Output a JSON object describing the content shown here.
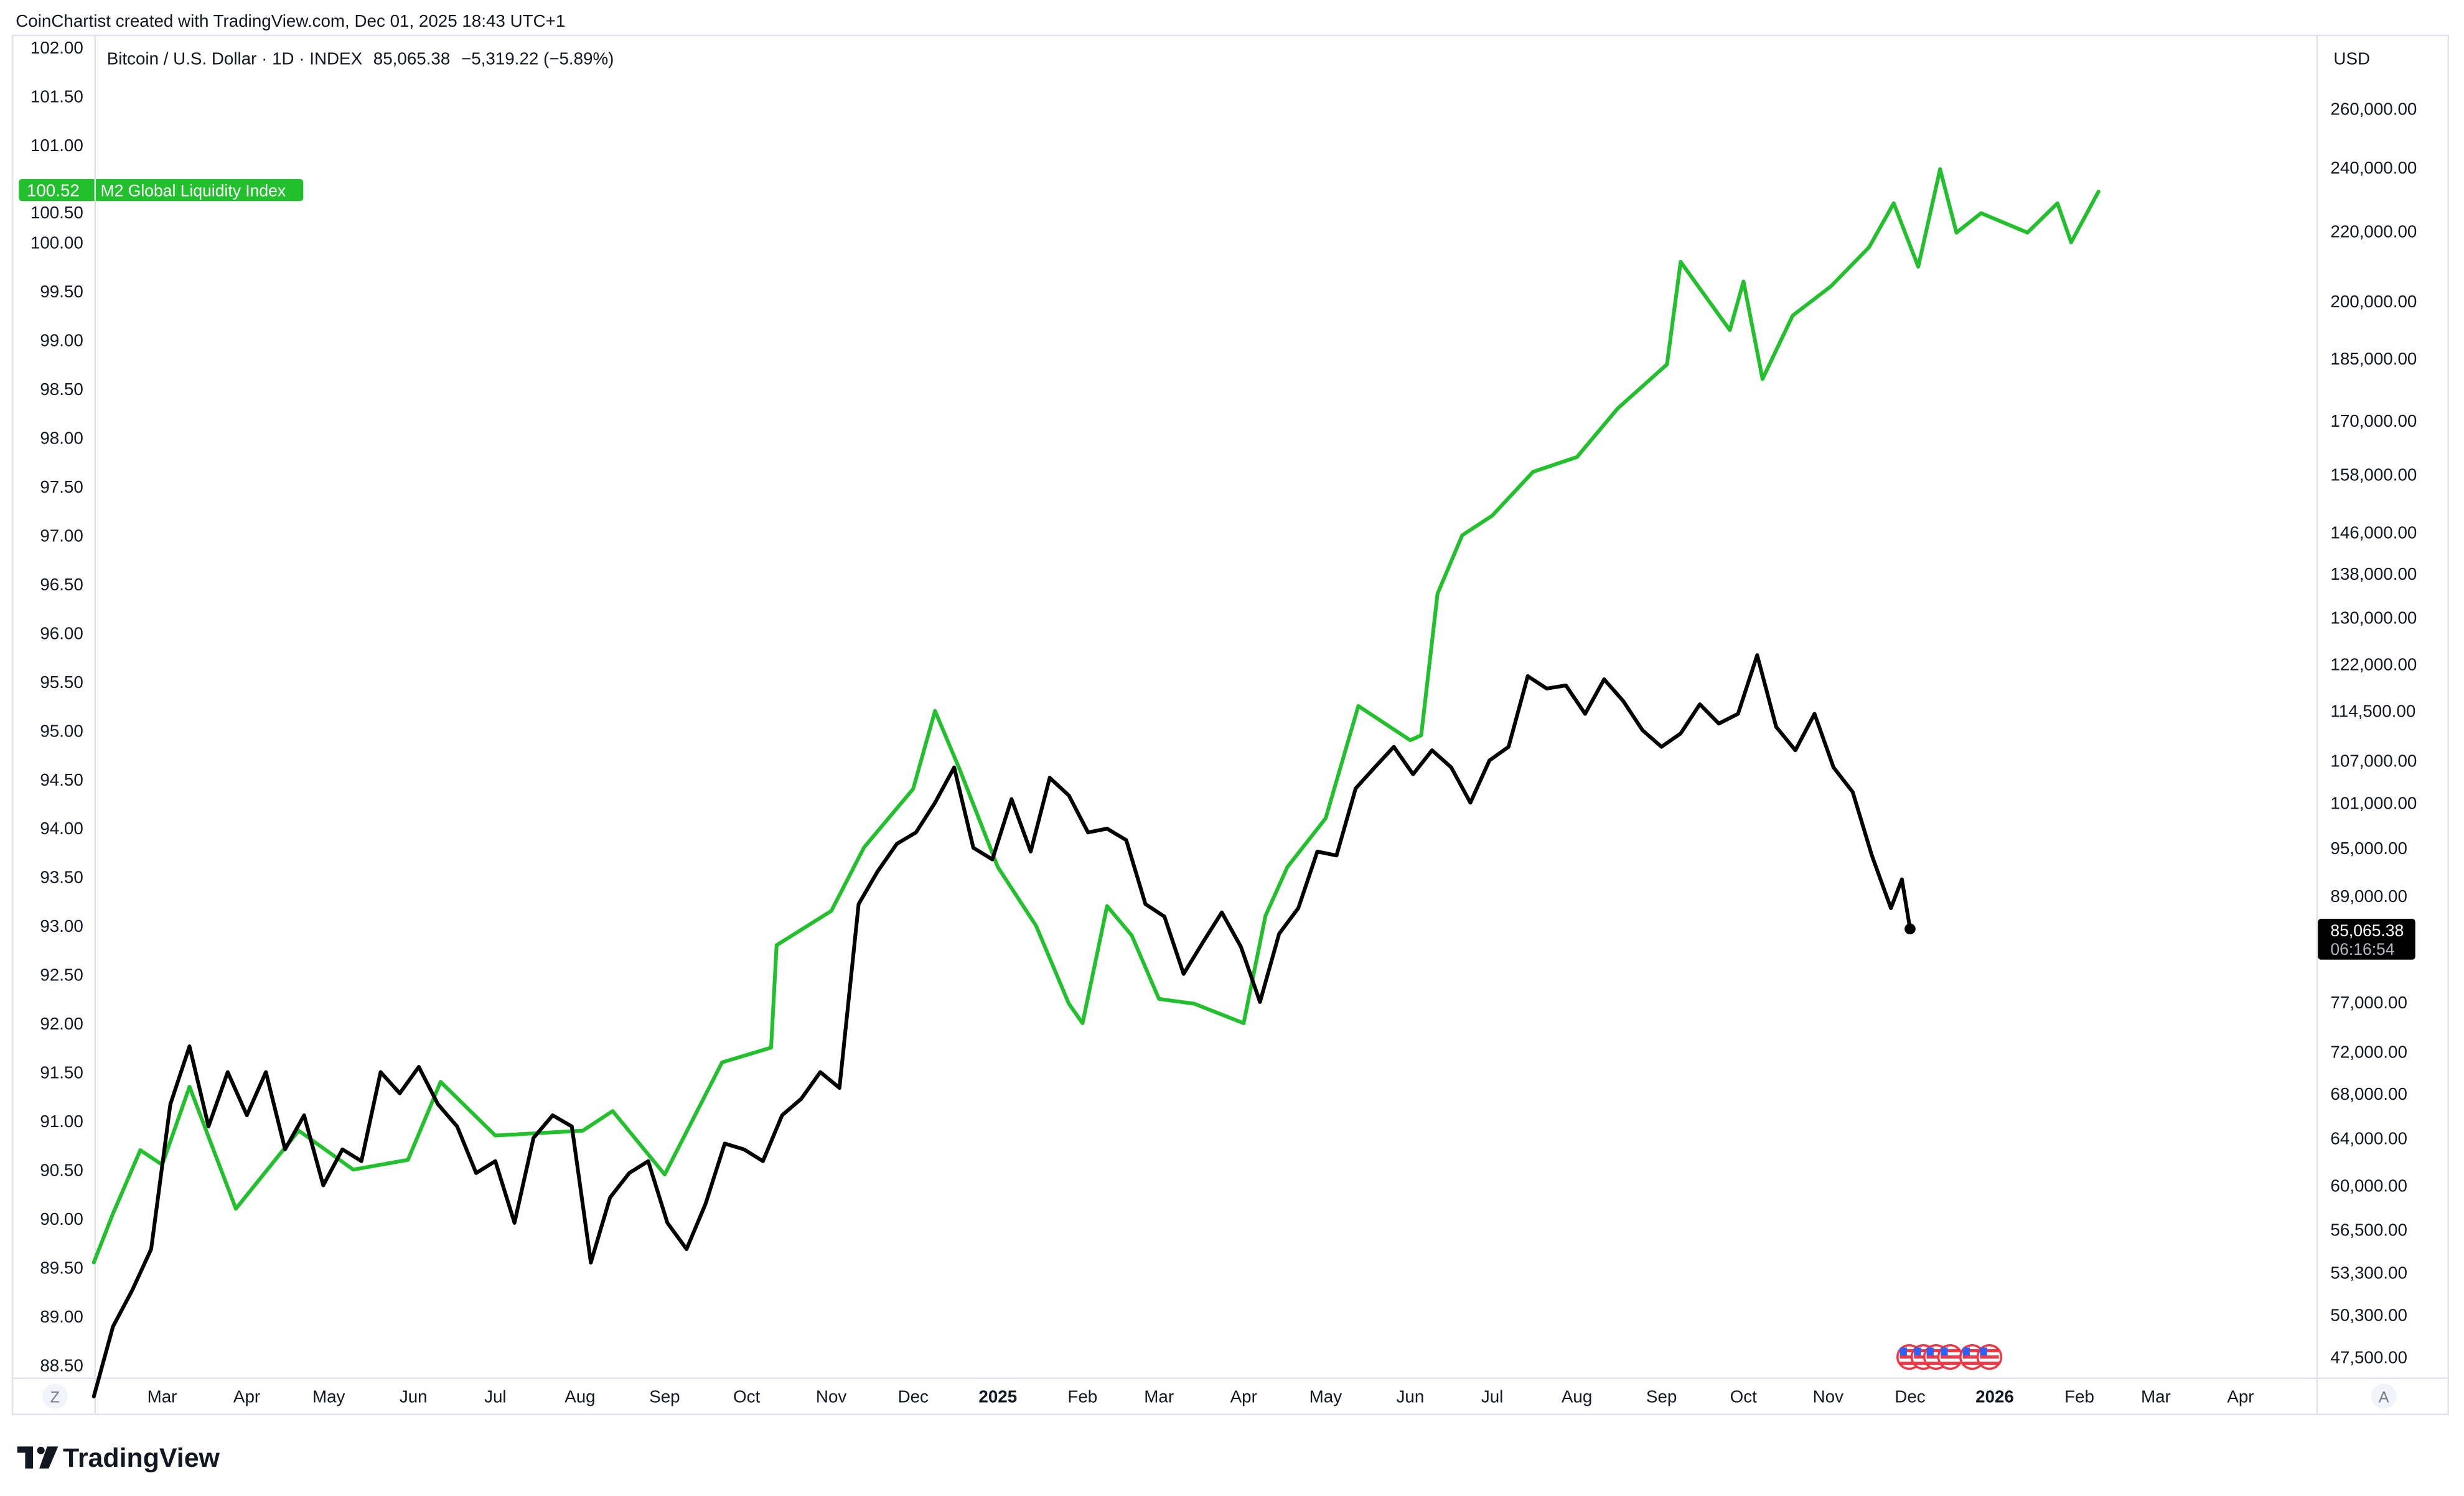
{
  "header": {
    "attribution": "CoinChartist created with TradingView.com, Dec 01, 2025 18:43 UTC+1"
  },
  "legend": {
    "symbol": "Bitcoin / U.S. Dollar · 1D · INDEX",
    "last": "85,065.38",
    "change": "−5,319.22 (−5.89%)"
  },
  "left_scale": {
    "badge_value": "100.52",
    "badge_label": "M2 Global Liquidity Index",
    "scale_button": "Z"
  },
  "right_scale": {
    "unit": "USD",
    "price_badge": "85,065.38",
    "countdown": "06:16:54",
    "scale_button": "A"
  },
  "logo": {
    "text": "TradingView"
  },
  "colors": {
    "btc": "#000000",
    "m2": "#22c02c",
    "grid_border": "#e0e3eb",
    "flag_red": "#f23645",
    "flag_blue": "#2962ff"
  },
  "chart_data": {
    "type": "line",
    "title": "",
    "left_axis": {
      "ylim": [
        88.5,
        102.0
      ],
      "ticks": [
        "102.00",
        "101.50",
        "101.00",
        "100.50",
        "100.00",
        "99.50",
        "99.00",
        "98.50",
        "98.00",
        "97.50",
        "97.00",
        "96.50",
        "96.00",
        "95.50",
        "95.00",
        "94.50",
        "94.00",
        "93.50",
        "93.00",
        "92.50",
        "92.00",
        "91.50",
        "91.00",
        "90.50",
        "90.00",
        "89.50",
        "89.00",
        "88.50"
      ]
    },
    "right_axis": {
      "scale": "log",
      "unit": "USD",
      "ticks": [
        "260,000.00",
        "240,000.00",
        "220,000.00",
        "200,000.00",
        "185,000.00",
        "170,000.00",
        "158,000.00",
        "146,000.00",
        "138,000.00",
        "130,000.00",
        "122,000.00",
        "114,500.00",
        "107,000.00",
        "101,000.00",
        "95,000.00",
        "89,000.00",
        "77,000.00",
        "72,000.00",
        "68,000.00",
        "64,000.00",
        "60,000.00",
        "56,500.00",
        "53,300.00",
        "50,300.00",
        "47,500.00"
      ]
    },
    "x_axis": {
      "ticks": [
        {
          "label": "Mar",
          "date": "2024-03-01"
        },
        {
          "label": "Apr",
          "date": "2024-04-01"
        },
        {
          "label": "May",
          "date": "2024-05-01"
        },
        {
          "label": "Jun",
          "date": "2024-06-01"
        },
        {
          "label": "Jul",
          "date": "2024-07-01"
        },
        {
          "label": "Aug",
          "date": "2024-08-01"
        },
        {
          "label": "Sep",
          "date": "2024-09-01"
        },
        {
          "label": "Oct",
          "date": "2024-10-01"
        },
        {
          "label": "Nov",
          "date": "2024-11-01"
        },
        {
          "label": "Dec",
          "date": "2024-12-01"
        },
        {
          "label": "2025",
          "date": "2025-01-01",
          "bold": true
        },
        {
          "label": "Feb",
          "date": "2025-02-01"
        },
        {
          "label": "Mar",
          "date": "2025-03-01"
        },
        {
          "label": "Apr",
          "date": "2025-04-01"
        },
        {
          "label": "May",
          "date": "2025-05-01"
        },
        {
          "label": "Jun",
          "date": "2025-06-01"
        },
        {
          "label": "Jul",
          "date": "2025-07-01"
        },
        {
          "label": "Aug",
          "date": "2025-08-01"
        },
        {
          "label": "Sep",
          "date": "2025-09-01"
        },
        {
          "label": "Oct",
          "date": "2025-10-01"
        },
        {
          "label": "Nov",
          "date": "2025-11-01"
        },
        {
          "label": "Dec",
          "date": "2025-12-01"
        },
        {
          "label": "2026",
          "date": "2026-01-01",
          "bold": true
        },
        {
          "label": "Feb",
          "date": "2026-02-01"
        },
        {
          "label": "Mar",
          "date": "2026-03-01"
        },
        {
          "label": "Apr",
          "date": "2026-04-01"
        }
      ]
    },
    "series": [
      {
        "name": "Bitcoin / U.S. Dollar",
        "axis": "right",
        "color": "#000000",
        "points": [
          [
            "2024-02-05",
            45000
          ],
          [
            "2024-02-12",
            49500
          ],
          [
            "2024-02-19",
            52000
          ],
          [
            "2024-02-26",
            55000
          ],
          [
            "2024-03-04",
            67000
          ],
          [
            "2024-03-11",
            72500
          ],
          [
            "2024-03-18",
            65000
          ],
          [
            "2024-03-25",
            70000
          ],
          [
            "2024-04-01",
            66000
          ],
          [
            "2024-04-08",
            70000
          ],
          [
            "2024-04-15",
            63000
          ],
          [
            "2024-04-22",
            66000
          ],
          [
            "2024-04-29",
            60000
          ],
          [
            "2024-05-06",
            63000
          ],
          [
            "2024-05-13",
            62000
          ],
          [
            "2024-05-20",
            70000
          ],
          [
            "2024-05-27",
            68000
          ],
          [
            "2024-06-03",
            70500
          ],
          [
            "2024-06-10",
            67000
          ],
          [
            "2024-06-17",
            65000
          ],
          [
            "2024-06-24",
            61000
          ],
          [
            "2024-07-01",
            62000
          ],
          [
            "2024-07-08",
            57000
          ],
          [
            "2024-07-15",
            64000
          ],
          [
            "2024-07-22",
            66000
          ],
          [
            "2024-07-29",
            65000
          ],
          [
            "2024-08-05",
            54000
          ],
          [
            "2024-08-12",
            59000
          ],
          [
            "2024-08-19",
            61000
          ],
          [
            "2024-08-26",
            62000
          ],
          [
            "2024-09-02",
            57000
          ],
          [
            "2024-09-09",
            55000
          ],
          [
            "2024-09-16",
            58500
          ],
          [
            "2024-09-23",
            63500
          ],
          [
            "2024-09-30",
            63000
          ],
          [
            "2024-10-07",
            62000
          ],
          [
            "2024-10-14",
            66000
          ],
          [
            "2024-10-21",
            67500
          ],
          [
            "2024-10-28",
            70000
          ],
          [
            "2024-11-04",
            68500
          ],
          [
            "2024-11-11",
            88000
          ],
          [
            "2024-11-18",
            92000
          ],
          [
            "2024-11-25",
            95500
          ],
          [
            "2024-12-02",
            97000
          ],
          [
            "2024-12-09",
            101000
          ],
          [
            "2024-12-16",
            106000
          ],
          [
            "2024-12-23",
            95000
          ],
          [
            "2024-12-30",
            93500
          ],
          [
            "2025-01-06",
            101500
          ],
          [
            "2025-01-13",
            94500
          ],
          [
            "2025-01-20",
            104500
          ],
          [
            "2025-01-27",
            102000
          ],
          [
            "2025-02-03",
            97000
          ],
          [
            "2025-02-10",
            97500
          ],
          [
            "2025-02-17",
            96000
          ],
          [
            "2025-02-24",
            88000
          ],
          [
            "2025-03-03",
            86500
          ],
          [
            "2025-03-10",
            80000
          ],
          [
            "2025-03-17",
            83500
          ],
          [
            "2025-03-24",
            87000
          ],
          [
            "2025-03-31",
            83000
          ],
          [
            "2025-04-07",
            77000
          ],
          [
            "2025-04-14",
            84500
          ],
          [
            "2025-04-21",
            87500
          ],
          [
            "2025-04-28",
            94500
          ],
          [
            "2025-05-05",
            94000
          ],
          [
            "2025-05-12",
            103000
          ],
          [
            "2025-05-19",
            106000
          ],
          [
            "2025-05-26",
            109000
          ],
          [
            "2025-06-02",
            105000
          ],
          [
            "2025-06-09",
            108500
          ],
          [
            "2025-06-16",
            106000
          ],
          [
            "2025-06-23",
            101000
          ],
          [
            "2025-06-30",
            107000
          ],
          [
            "2025-07-07",
            109000
          ],
          [
            "2025-07-14",
            120000
          ],
          [
            "2025-07-21",
            118000
          ],
          [
            "2025-07-28",
            118500
          ],
          [
            "2025-08-04",
            114000
          ],
          [
            "2025-08-11",
            119500
          ],
          [
            "2025-08-18",
            116000
          ],
          [
            "2025-08-25",
            111500
          ],
          [
            "2025-09-01",
            109000
          ],
          [
            "2025-09-08",
            111000
          ],
          [
            "2025-09-15",
            115500
          ],
          [
            "2025-09-22",
            112500
          ],
          [
            "2025-09-29",
            114000
          ],
          [
            "2025-10-06",
            123500
          ],
          [
            "2025-10-13",
            112000
          ],
          [
            "2025-10-20",
            108500
          ],
          [
            "2025-10-27",
            114000
          ],
          [
            "2025-11-03",
            106000
          ],
          [
            "2025-11-10",
            102500
          ],
          [
            "2025-11-17",
            94000
          ],
          [
            "2025-11-24",
            87500
          ],
          [
            "2025-11-28",
            91000
          ],
          [
            "2025-12-01",
            85065.38
          ]
        ]
      },
      {
        "name": "M2 Global Liquidity Index",
        "axis": "left",
        "color": "#22c02c",
        "points": [
          [
            "2024-02-05",
            89.55
          ],
          [
            "2024-02-12",
            90.05
          ],
          [
            "2024-02-22",
            90.7
          ],
          [
            "2024-03-01",
            90.55
          ],
          [
            "2024-03-11",
            91.35
          ],
          [
            "2024-03-28",
            90.1
          ],
          [
            "2024-04-20",
            90.9
          ],
          [
            "2024-05-10",
            90.5
          ],
          [
            "2024-05-30",
            90.6
          ],
          [
            "2024-06-11",
            91.4
          ],
          [
            "2024-07-01",
            90.85
          ],
          [
            "2024-08-02",
            90.9
          ],
          [
            "2024-08-13",
            91.1
          ],
          [
            "2024-09-01",
            90.45
          ],
          [
            "2024-09-22",
            91.6
          ],
          [
            "2024-10-10",
            91.75
          ],
          [
            "2024-10-12",
            92.8
          ],
          [
            "2024-11-01",
            93.15
          ],
          [
            "2024-11-13",
            93.8
          ],
          [
            "2024-12-01",
            94.4
          ],
          [
            "2024-12-09",
            95.2
          ],
          [
            "2024-12-18",
            94.6
          ],
          [
            "2025-01-01",
            93.6
          ],
          [
            "2025-01-15",
            93.0
          ],
          [
            "2025-01-27",
            92.2
          ],
          [
            "2025-02-01",
            92.0
          ],
          [
            "2025-02-10",
            93.2
          ],
          [
            "2025-02-19",
            92.9
          ],
          [
            "2025-03-01",
            92.25
          ],
          [
            "2025-03-14",
            92.2
          ],
          [
            "2025-04-01",
            92.0
          ],
          [
            "2025-04-09",
            93.1
          ],
          [
            "2025-04-17",
            93.6
          ],
          [
            "2025-05-01",
            94.1
          ],
          [
            "2025-05-13",
            95.25
          ],
          [
            "2025-06-01",
            94.9
          ],
          [
            "2025-06-05",
            94.95
          ],
          [
            "2025-06-11",
            96.4
          ],
          [
            "2025-06-20",
            97.0
          ],
          [
            "2025-07-01",
            97.2
          ],
          [
            "2025-07-16",
            97.65
          ],
          [
            "2025-08-01",
            97.8
          ],
          [
            "2025-08-16",
            98.3
          ],
          [
            "2025-09-03",
            98.75
          ],
          [
            "2025-09-08",
            99.8
          ],
          [
            "2025-09-26",
            99.1
          ],
          [
            "2025-10-01",
            99.6
          ],
          [
            "2025-10-08",
            98.6
          ],
          [
            "2025-10-19",
            99.25
          ],
          [
            "2025-11-02",
            99.55
          ],
          [
            "2025-11-16",
            99.95
          ],
          [
            "2025-11-25",
            100.4
          ],
          [
            "2025-12-04",
            99.75
          ],
          [
            "2025-12-12",
            100.75
          ],
          [
            "2025-12-18",
            100.1
          ],
          [
            "2025-12-27",
            100.3
          ],
          [
            "2026-01-13",
            100.1
          ],
          [
            "2026-01-24",
            100.4
          ],
          [
            "2026-01-29",
            100.0
          ],
          [
            "2026-02-08",
            100.52
          ]
        ]
      }
    ],
    "grid": false
  }
}
